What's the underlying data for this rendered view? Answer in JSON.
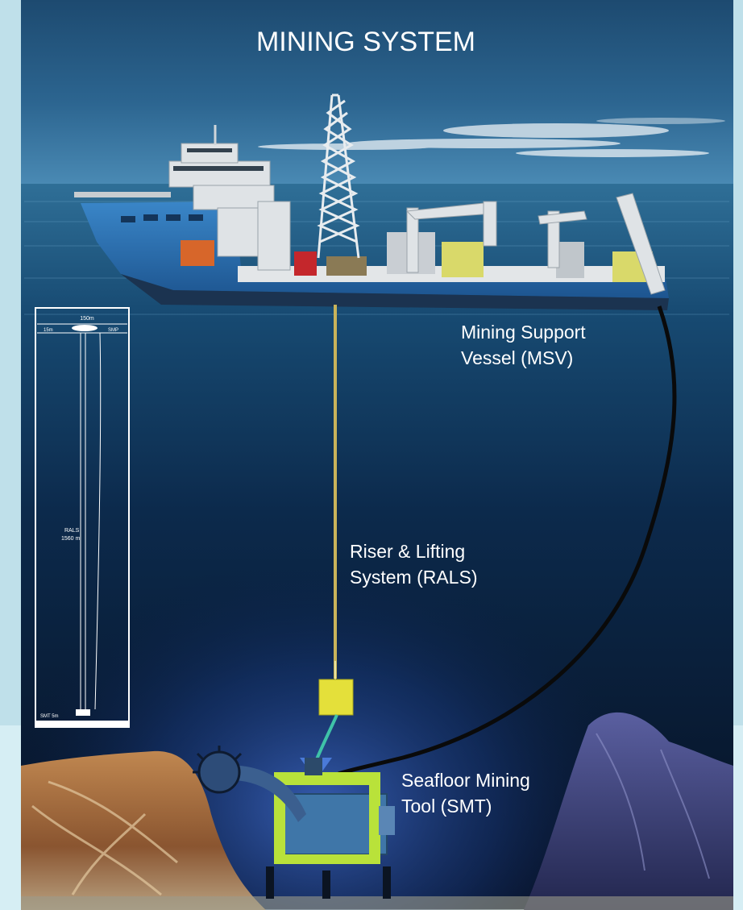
{
  "title": "MINING SYSTEM",
  "labels": {
    "msv": [
      "Mining Support",
      "Vessel (MSV)"
    ],
    "rals": [
      "Riser & Lifting",
      "System (RALS)"
    ],
    "smt": [
      "Seafloor Mining",
      "Tool (SMT)"
    ]
  },
  "inset": {
    "top_dim": "150m",
    "left_top": "15m",
    "right_top": "SMP",
    "mid_label": [
      "RALS",
      "1560 m"
    ],
    "bottom_label": "SMT 5m"
  },
  "colors": {
    "sky_top": "#1f4f78",
    "sea_deep": "#071427",
    "hull": "#2a6fb0",
    "deck": "#e3e6e8",
    "riser": "#c9b35a",
    "pump": "#e4e03a",
    "tool_frame": "#b9e23a",
    "tool_body": "#3f76a8",
    "umbilical": "#0a0a0a",
    "rock_left": "#a0683a",
    "rock_right": "#3b3f7a"
  },
  "icons": [
    "ship-icon",
    "derrick-icon",
    "crane-icon",
    "pump-module-icon",
    "mining-tool-icon",
    "cutter-head-icon"
  ]
}
